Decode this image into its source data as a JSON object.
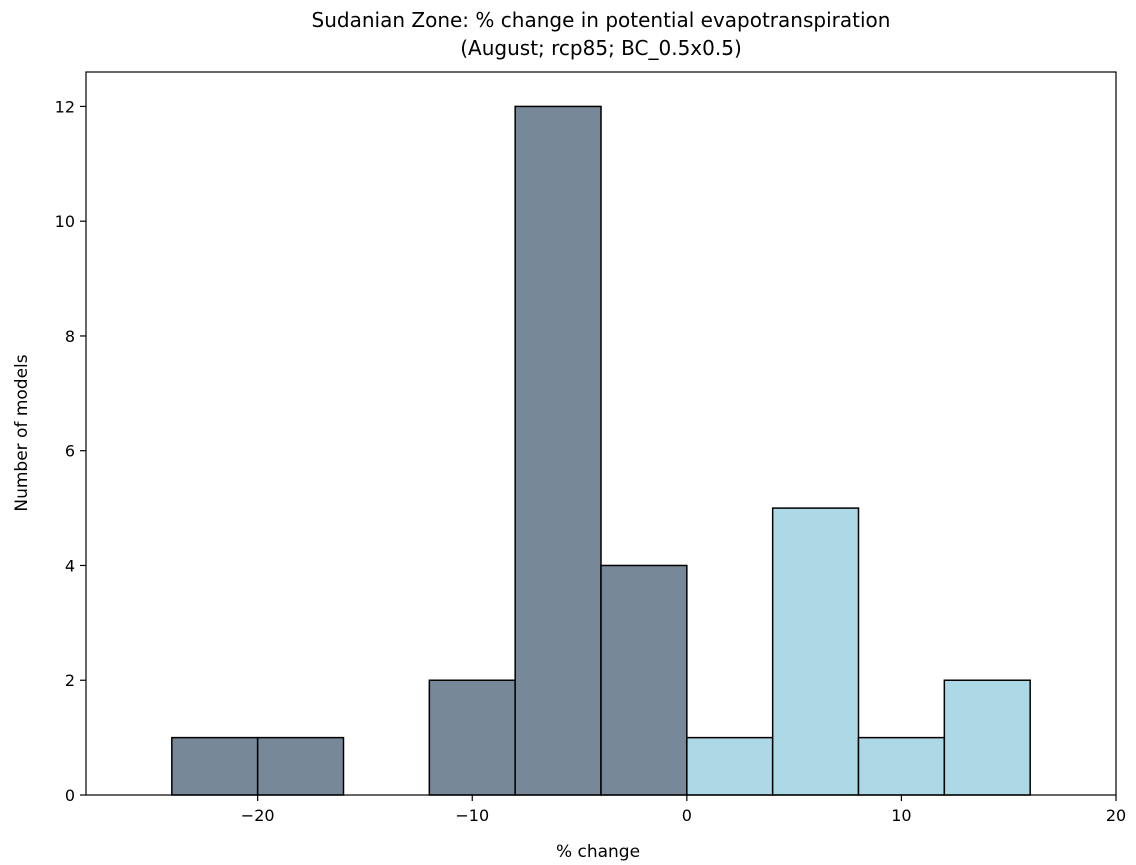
{
  "chart_data": {
    "type": "bar",
    "title": "Sudanian Zone: % change in potential evapotranspiration",
    "subtitle": "(August; rcp85; BC_0.5x0.5)",
    "xlabel": "% change",
    "ylabel": "Number of models",
    "xlim": [
      -28,
      20
    ],
    "ylim": [
      0,
      12.6
    ],
    "xticks": [
      -20,
      -10,
      0,
      10,
      20
    ],
    "xtick_labels": [
      "−20",
      "−10",
      "0",
      "10",
      "20"
    ],
    "yticks": [
      0,
      2,
      4,
      6,
      8,
      10,
      12
    ],
    "ytick_labels": [
      "0",
      "2",
      "4",
      "6",
      "8",
      "10",
      "12"
    ],
    "grid": false,
    "colors": {
      "negative": "#778899",
      "positive": "#add8e6",
      "edge": "#000000"
    },
    "bins": [
      {
        "x0": -24,
        "x1": -20,
        "count": 1
      },
      {
        "x0": -20,
        "x1": -16,
        "count": 1
      },
      {
        "x0": -12,
        "x1": -8,
        "count": 2
      },
      {
        "x0": -8,
        "x1": -4,
        "count": 12
      },
      {
        "x0": -4,
        "x1": 0,
        "count": 4
      },
      {
        "x0": 0,
        "x1": 4,
        "count": 1
      },
      {
        "x0": 4,
        "x1": 8,
        "count": 5
      },
      {
        "x0": 8,
        "x1": 12,
        "count": 1
      },
      {
        "x0": 12,
        "x1": 16,
        "count": 2
      }
    ]
  }
}
